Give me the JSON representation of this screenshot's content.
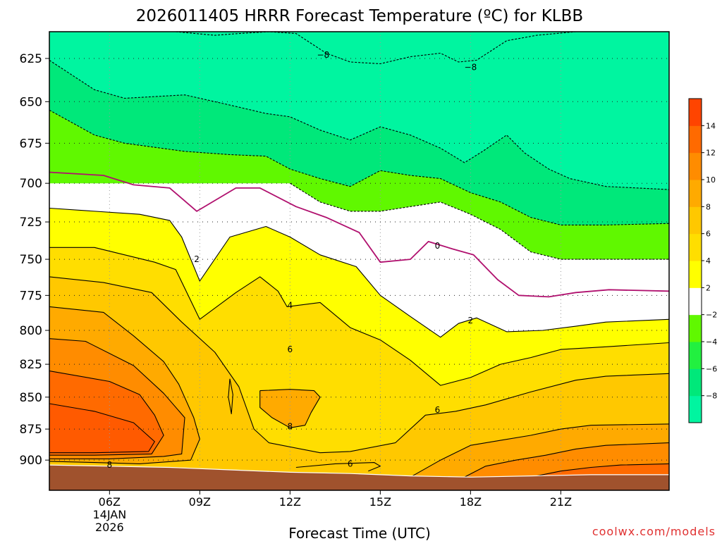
{
  "chart_data": {
    "type": "heatmap",
    "title": "2026011405 HRRR Forecast Temperature (ºC) for KLBB",
    "xlabel": "Forecast Time (UTC)",
    "ylabel": "",
    "credit": "coolwx.com/models",
    "x_range_hours": [
      4,
      24.6
    ],
    "y_range_hpa": [
      610,
      925
    ],
    "y_log_scale": true,
    "grid": "dotted",
    "x_ticks": [
      {
        "hour": 6,
        "label": "06Z",
        "sub1": "14JAN",
        "sub2": "2026"
      },
      {
        "hour": 9,
        "label": "09Z",
        "sub1": "",
        "sub2": ""
      },
      {
        "hour": 12,
        "label": "12Z",
        "sub1": "",
        "sub2": ""
      },
      {
        "hour": 15,
        "label": "15Z",
        "sub1": "",
        "sub2": ""
      },
      {
        "hour": 18,
        "label": "18Z",
        "sub1": "",
        "sub2": ""
      },
      {
        "hour": 21,
        "label": "21Z",
        "sub1": "",
        "sub2": ""
      }
    ],
    "y_ticks": [
      625,
      650,
      675,
      700,
      725,
      750,
      775,
      800,
      825,
      850,
      875,
      900
    ],
    "colorbar": {
      "placement": "right",
      "levels": [
        -10,
        -8,
        -6,
        -4,
        -2,
        2,
        4,
        6,
        8,
        10,
        12,
        14,
        16
      ],
      "colors": [
        "#00f5a0",
        "#00e87a",
        "#22f040",
        "#60f800",
        "#ffffff",
        "#ffff00",
        "#ffde00",
        "#ffc800",
        "#ffaa00",
        "#ff8c00",
        "#ff6a00",
        "#ff4400"
      ],
      "labels": [
        {
          "v": -8,
          "t": "−8"
        },
        {
          "v": -6,
          "t": "−6"
        },
        {
          "v": -4,
          "t": "−4"
        },
        {
          "v": -2,
          "t": "−2"
        },
        {
          "v": 2,
          "t": "2"
        },
        {
          "v": 4,
          "t": "4"
        },
        {
          "v": 6,
          "t": "6"
        },
        {
          "v": 8,
          "t": "8"
        },
        {
          "v": 10,
          "t": "10"
        },
        {
          "v": 12,
          "t": "12"
        },
        {
          "v": 14,
          "t": "14"
        }
      ]
    },
    "region_colors": {
      "ground": "#a0522d",
      "warm_core": "#ff5a00"
    },
    "contours": [
      {
        "name": "iso-m8",
        "label": "−8",
        "dashed": true,
        "pts": [
          [
            8.2,
            610
          ],
          [
            9.5,
            612
          ],
          [
            10.3,
            611
          ],
          [
            11.3,
            610
          ],
          [
            12.2,
            611
          ],
          [
            13.2,
            622
          ],
          [
            14.0,
            627
          ],
          [
            15.0,
            628
          ],
          [
            16.0,
            624
          ],
          [
            17.0,
            622
          ],
          [
            17.6,
            627
          ],
          [
            18.2,
            626
          ],
          [
            19.2,
            615
          ],
          [
            20.2,
            612
          ],
          [
            21.5,
            610
          ]
        ]
      },
      {
        "name": "iso-m6",
        "label": "",
        "dashed": true,
        "pts": [
          [
            4,
            626
          ],
          [
            5.5,
            643
          ],
          [
            6.5,
            648
          ],
          [
            8.5,
            646
          ],
          [
            10,
            652
          ],
          [
            11.2,
            657
          ],
          [
            12.0,
            659
          ],
          [
            13.0,
            667
          ],
          [
            14.0,
            673
          ],
          [
            15.0,
            665
          ],
          [
            16.0,
            670
          ],
          [
            17.0,
            678
          ],
          [
            17.8,
            687
          ],
          [
            18.4,
            680
          ],
          [
            19.2,
            670
          ],
          [
            19.8,
            681
          ],
          [
            20.6,
            691
          ],
          [
            21.3,
            697
          ],
          [
            22.5,
            702
          ],
          [
            24.6,
            704
          ]
        ]
      },
      {
        "name": "iso-m4",
        "label": "",
        "dashed": true,
        "pts": [
          [
            4,
            655
          ],
          [
            5.5,
            670
          ],
          [
            6.5,
            675
          ],
          [
            8.5,
            680
          ],
          [
            10,
            682
          ],
          [
            11.2,
            683
          ],
          [
            12,
            691
          ],
          [
            13,
            697
          ],
          [
            14,
            702
          ],
          [
            15,
            692
          ],
          [
            16,
            695
          ],
          [
            17,
            697
          ],
          [
            18,
            706
          ],
          [
            19,
            712
          ],
          [
            20,
            722
          ],
          [
            21,
            727
          ],
          [
            22.5,
            727
          ],
          [
            24.6,
            726
          ]
        ]
      },
      {
        "name": "iso-m2",
        "label": "",
        "dashed": true,
        "pts": [
          [
            12,
            700
          ],
          [
            13,
            712
          ],
          [
            14,
            718
          ],
          [
            15,
            718
          ],
          [
            16,
            715
          ],
          [
            17,
            712
          ],
          [
            18,
            720
          ],
          [
            19,
            730
          ],
          [
            20,
            745
          ],
          [
            21,
            750
          ],
          [
            24.6,
            750
          ]
        ]
      },
      {
        "name": "iso-0",
        "label": "0",
        "dashed": false,
        "pts": [
          [
            4,
            693
          ],
          [
            5.8,
            695
          ],
          [
            6.8,
            701
          ],
          [
            8,
            703
          ],
          [
            8.9,
            718
          ],
          [
            10.2,
            703
          ],
          [
            11,
            703
          ],
          [
            12.2,
            715
          ],
          [
            13.2,
            722
          ],
          [
            14.3,
            732
          ],
          [
            15.0,
            752
          ],
          [
            16.0,
            750
          ],
          [
            16.6,
            738
          ],
          [
            17.4,
            743
          ],
          [
            18.1,
            747
          ],
          [
            18.9,
            764
          ],
          [
            19.6,
            775
          ],
          [
            20.6,
            776
          ],
          [
            21.5,
            773
          ],
          [
            22.6,
            771
          ],
          [
            24.6,
            772
          ]
        ]
      },
      {
        "name": "iso-2",
        "label": "2",
        "dashed": false,
        "pts": [
          [
            4,
            716
          ],
          [
            7.0,
            720
          ],
          [
            8.0,
            724
          ],
          [
            8.4,
            735
          ],
          [
            9.0,
            765
          ],
          [
            10.0,
            735
          ],
          [
            11.2,
            728
          ],
          [
            12.0,
            735
          ],
          [
            13.0,
            747
          ],
          [
            14.2,
            755
          ],
          [
            15.0,
            775
          ],
          [
            16.0,
            790
          ],
          [
            17.0,
            805
          ],
          [
            17.6,
            795
          ],
          [
            18.2,
            791
          ],
          [
            19.2,
            801
          ],
          [
            20.4,
            800
          ],
          [
            21.5,
            797
          ],
          [
            22.5,
            794
          ],
          [
            24.6,
            792
          ]
        ]
      },
      {
        "name": "iso-4",
        "label": "4",
        "dashed": false,
        "pts": [
          [
            4,
            742
          ],
          [
            5.5,
            742
          ],
          [
            7.5,
            752
          ],
          [
            8.2,
            757
          ],
          [
            9.0,
            792
          ],
          [
            10.2,
            773
          ],
          [
            11.0,
            762
          ],
          [
            11.6,
            772
          ],
          [
            11.9,
            783
          ],
          [
            13.0,
            780
          ],
          [
            14.0,
            798
          ],
          [
            15.0,
            807
          ],
          [
            16.0,
            822
          ],
          [
            17.0,
            841
          ],
          [
            18.0,
            835
          ],
          [
            19.0,
            825
          ],
          [
            20.0,
            820
          ],
          [
            21.0,
            814
          ],
          [
            22.5,
            812
          ],
          [
            24.6,
            809
          ]
        ]
      },
      {
        "name": "iso-6",
        "label": "6",
        "dashed": false,
        "pts": [
          [
            4,
            762
          ],
          [
            5.8,
            766
          ],
          [
            7.4,
            773
          ],
          [
            8.4,
            794
          ],
          [
            9.5,
            816
          ],
          [
            10.3,
            842
          ],
          [
            10.8,
            875
          ],
          [
            11.3,
            886
          ],
          [
            13,
            894
          ],
          [
            14,
            893
          ],
          [
            15.5,
            886
          ],
          [
            16.5,
            864
          ],
          [
            17.5,
            861
          ],
          [
            18.5,
            856
          ],
          [
            20.0,
            846
          ],
          [
            21.5,
            837
          ],
          [
            22.5,
            834
          ],
          [
            24.6,
            832
          ]
        ]
      },
      {
        "name": "iso-8",
        "label": "8",
        "dashed": false,
        "pts": [
          [
            4,
            783
          ],
          [
            5.8,
            787
          ],
          [
            6.8,
            804
          ],
          [
            7.8,
            823
          ],
          [
            8.3,
            840
          ],
          [
            8.8,
            866
          ],
          [
            9.0,
            883
          ],
          [
            8.7,
            900
          ],
          [
            7.0,
            903
          ],
          [
            5.5,
            902
          ],
          [
            4,
            901
          ]
        ]
      },
      {
        "name": "iso-10",
        "label": "",
        "dashed": false,
        "pts": [
          [
            4,
            806
          ],
          [
            5.2,
            808
          ],
          [
            6.8,
            826
          ],
          [
            7.8,
            847
          ],
          [
            8.5,
            866
          ],
          [
            8.4,
            895
          ],
          [
            7.8,
            897
          ],
          [
            6.0,
            899
          ],
          [
            4,
            899
          ]
        ]
      },
      {
        "name": "iso-12",
        "label": "",
        "dashed": false,
        "pts": [
          [
            4,
            830
          ],
          [
            6.0,
            838
          ],
          [
            7.0,
            848
          ],
          [
            7.5,
            864
          ],
          [
            7.8,
            880
          ],
          [
            7.4,
            895
          ],
          [
            5.5,
            896
          ],
          [
            4,
            896
          ]
        ]
      },
      {
        "name": "iso-14",
        "label": "",
        "dashed": false,
        "pts": [
          [
            4,
            855
          ],
          [
            5.5,
            861
          ],
          [
            6.8,
            870
          ],
          [
            7.5,
            885
          ],
          [
            7.3,
            893
          ],
          [
            5.5,
            894
          ],
          [
            4,
            894
          ]
        ]
      },
      {
        "name": "iso-8-pocket",
        "label": "8",
        "dashed": false,
        "pts": [
          [
            11.0,
            845
          ],
          [
            12.0,
            844
          ],
          [
            12.8,
            845
          ],
          [
            13.0,
            850
          ],
          [
            12.7,
            862
          ],
          [
            12.5,
            872
          ],
          [
            12.0,
            874
          ],
          [
            11.4,
            866
          ],
          [
            11.0,
            858
          ],
          [
            11.0,
            845
          ]
        ]
      },
      {
        "name": "iso-6-ground",
        "label": "6",
        "dashed": false,
        "pts": [
          [
            12.2,
            906
          ],
          [
            13.5,
            903
          ],
          [
            14.8,
            902
          ],
          [
            15.0,
            905
          ],
          [
            14.6,
            909
          ]
        ]
      },
      {
        "name": "iso-8-ground",
        "label": "",
        "dashed": false,
        "pts": [
          [
            16.0,
            914
          ],
          [
            17.0,
            900
          ],
          [
            18.0,
            888
          ],
          [
            19.0,
            884
          ],
          [
            20.0,
            880
          ],
          [
            21.0,
            875
          ],
          [
            22.0,
            872
          ],
          [
            24.6,
            871
          ]
        ]
      },
      {
        "name": "iso-10-ground",
        "label": "",
        "dashed": false,
        "pts": [
          [
            17.8,
            914
          ],
          [
            18.5,
            905
          ],
          [
            19.5,
            900
          ],
          [
            20.5,
            896
          ],
          [
            21.5,
            891
          ],
          [
            22.5,
            888
          ],
          [
            24.6,
            886
          ]
        ]
      },
      {
        "name": "iso-12-ground",
        "label": "",
        "dashed": false,
        "pts": [
          [
            20,
            914
          ],
          [
            21,
            909
          ],
          [
            22,
            906
          ],
          [
            23,
            904
          ],
          [
            24.6,
            903
          ]
        ]
      },
      {
        "name": "iso-sliver",
        "label": "",
        "dashed": false,
        "pts": [
          [
            10.0,
            836
          ],
          [
            10.1,
            848
          ],
          [
            10.05,
            863
          ],
          [
            9.95,
            850
          ],
          [
            10.0,
            836
          ]
        ]
      }
    ],
    "contour_labels": [
      {
        "text": "−8",
        "hour": 13.1,
        "hpa": 623
      },
      {
        "text": "−8",
        "hour": 18.0,
        "hpa": 630
      },
      {
        "text": "0",
        "hour": 16.9,
        "hpa": 741
      },
      {
        "text": "2",
        "hour": 8.9,
        "hpa": 750
      },
      {
        "text": "2",
        "hour": 18.0,
        "hpa": 793
      },
      {
        "text": "4",
        "hour": 12.0,
        "hpa": 782
      },
      {
        "text": "6",
        "hour": 12.0,
        "hpa": 814
      },
      {
        "text": "6",
        "hour": 16.9,
        "hpa": 860
      },
      {
        "text": "6",
        "hour": 14.0,
        "hpa": 903
      },
      {
        "text": "8",
        "hour": 12.0,
        "hpa": 873
      },
      {
        "text": "8",
        "hour": 6.0,
        "hpa": 904
      }
    ],
    "ground_hpa": [
      [
        4,
        904
      ],
      [
        6,
        905
      ],
      [
        8,
        906
      ],
      [
        10,
        908
      ],
      [
        12,
        910
      ],
      [
        14,
        911
      ],
      [
        16,
        913
      ],
      [
        18,
        914
      ],
      [
        20,
        913
      ],
      [
        22,
        912
      ],
      [
        24.6,
        912
      ]
    ]
  }
}
